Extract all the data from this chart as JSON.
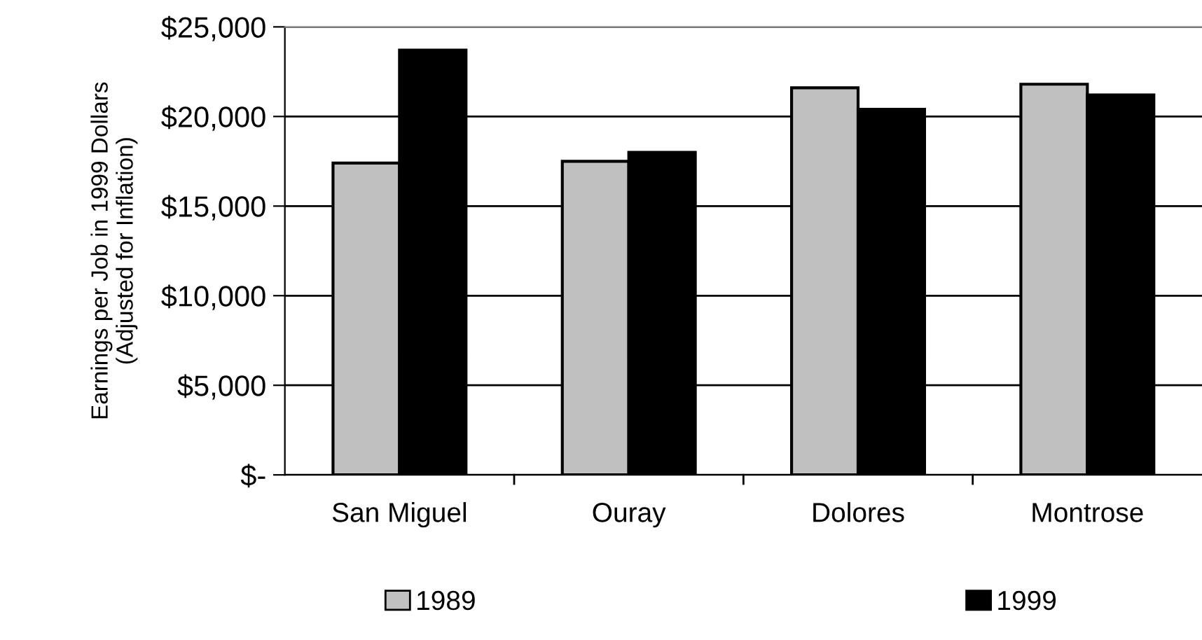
{
  "chart_data": {
    "type": "bar",
    "ylabel": "Earnings per Job in 1999 Dollars\n(Adjusted for Inflation)",
    "categories": [
      "San Miguel",
      "Ouray",
      "Dolores",
      "Montrose"
    ],
    "series": [
      {
        "name": "1989",
        "color": "#c0c0c0",
        "values": [
          17400,
          17500,
          21600,
          21800
        ]
      },
      {
        "name": "1999",
        "color": "#000000",
        "values": [
          23700,
          18000,
          20400,
          21200
        ]
      }
    ],
    "ylim": [
      0,
      25000
    ],
    "yticks": [
      {
        "value": 0,
        "label": "$-"
      },
      {
        "value": 5000,
        "label": "$5,000"
      },
      {
        "value": 10000,
        "label": "$10,000"
      },
      {
        "value": 15000,
        "label": "$15,000"
      },
      {
        "value": 20000,
        "label": "$20,000"
      },
      {
        "value": 25000,
        "label": "$25,000"
      }
    ],
    "grid": "y",
    "legend": "bottom"
  }
}
